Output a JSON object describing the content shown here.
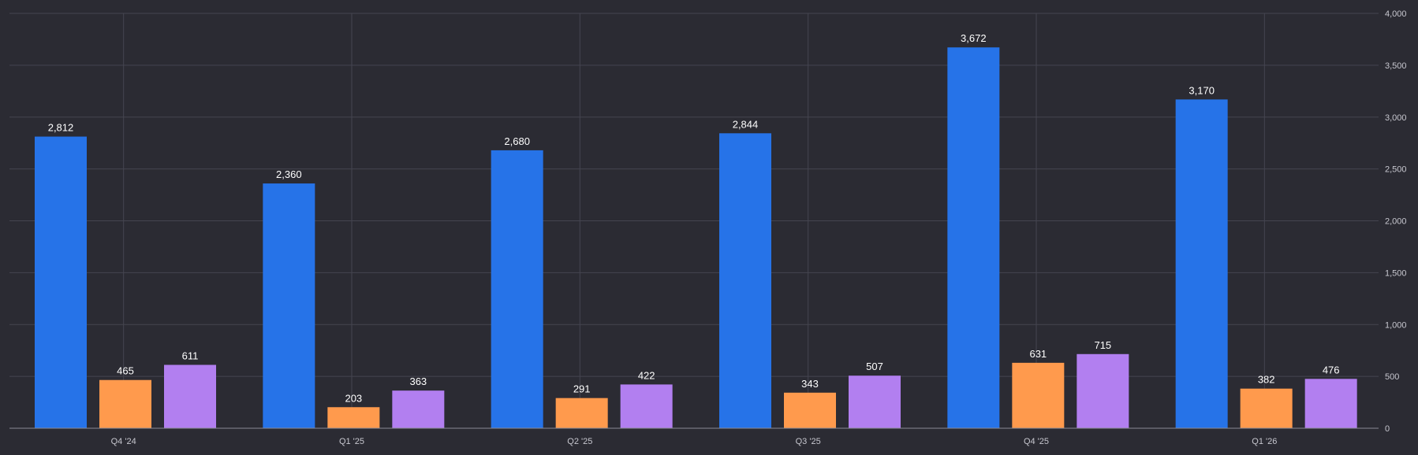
{
  "chart_data": {
    "type": "bar",
    "title": "",
    "xlabel": "",
    "ylabel": "",
    "categories": [
      "Q4 '24",
      "Q1 '25",
      "Q2 '25",
      "Q3 '25",
      "Q4 '25",
      "Q1 '26"
    ],
    "series": [
      {
        "color": "#2673e8",
        "values": [
          2812,
          2360,
          2680,
          2844,
          3672,
          3170
        ]
      },
      {
        "color": "#ff9a4d",
        "values": [
          465,
          203,
          291,
          343,
          631,
          382
        ]
      },
      {
        "color": "#b27ff0",
        "values": [
          611,
          363,
          422,
          507,
          715,
          476
        ]
      }
    ],
    "ylim": [
      0,
      4000
    ],
    "yticks": [
      0,
      500,
      1000,
      1500,
      2000,
      2500,
      3000,
      3500,
      4000
    ],
    "ytick_labels": [
      "0",
      "500",
      "1,000",
      "1,500",
      "2,000",
      "2,500",
      "3,000",
      "3,500",
      "4,000"
    ],
    "y_axis_position": "right",
    "grid": true,
    "data_labels": true
  }
}
